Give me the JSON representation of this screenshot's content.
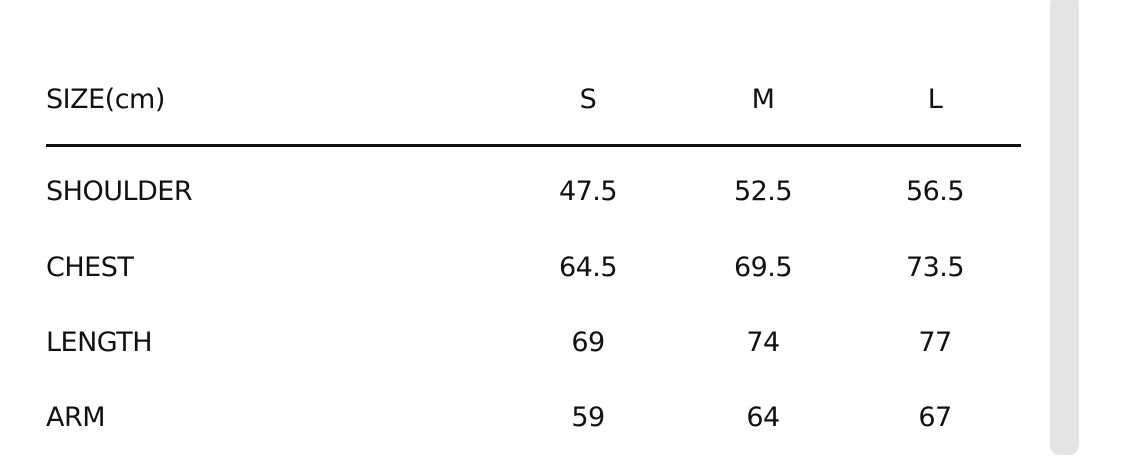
{
  "table": {
    "header": {
      "label": "SIZE(cm)",
      "sizes": [
        "S",
        "M",
        "L"
      ]
    },
    "rows": [
      {
        "label": "SHOULDER",
        "values": [
          "47.5",
          "52.5",
          "56.5"
        ]
      },
      {
        "label": "CHEST",
        "values": [
          "64.5",
          "69.5",
          "73.5"
        ]
      },
      {
        "label": "LENGTH",
        "values": [
          "69",
          "74",
          "77"
        ]
      },
      {
        "label": "ARM",
        "values": [
          "59",
          "64",
          "67"
        ]
      }
    ]
  },
  "colors": {
    "text": "#111111",
    "scrollbar": "#e3e3e3"
  }
}
